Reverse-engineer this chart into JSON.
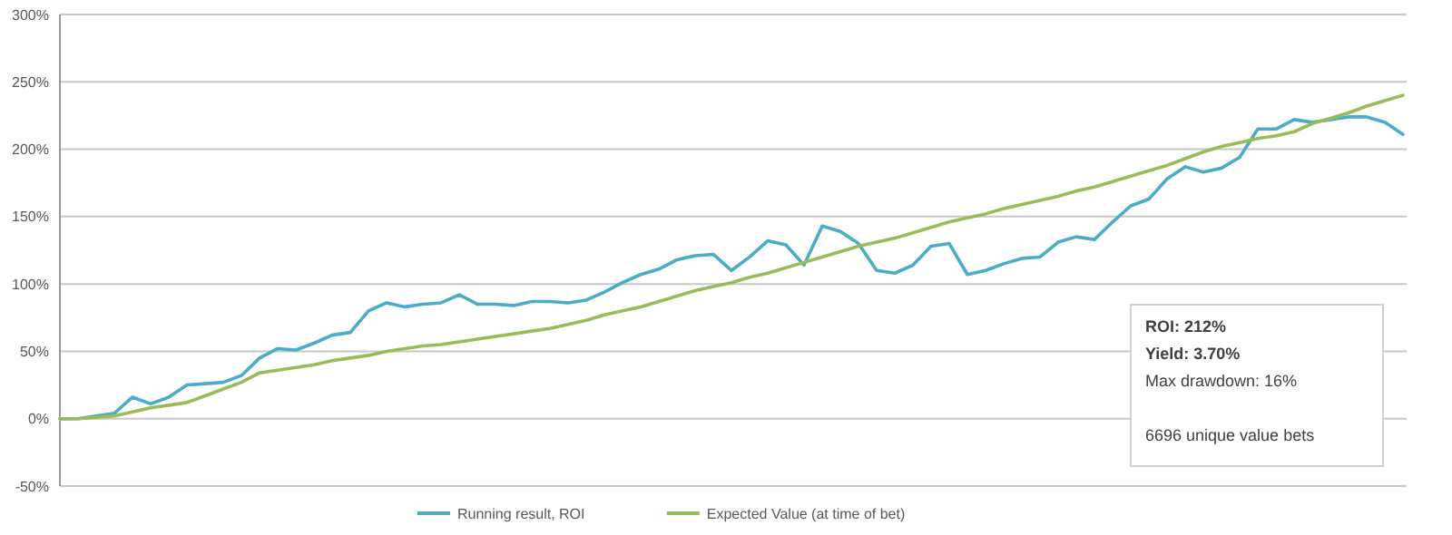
{
  "chart_data": {
    "type": "line",
    "categories": [
      null,
      null,
      null,
      null,
      null,
      null,
      null,
      null,
      null,
      null,
      null,
      null,
      null,
      null,
      null,
      null,
      null,
      null,
      null,
      null,
      null,
      null,
      null,
      null,
      null,
      null,
      null,
      null,
      null,
      null,
      null,
      null,
      null,
      null,
      null,
      null,
      null,
      null,
      null,
      null,
      null,
      null,
      null,
      null,
      null,
      null,
      null,
      null,
      null,
      null,
      null,
      null,
      null,
      null,
      null,
      null,
      null,
      null,
      null,
      null,
      null,
      null,
      null,
      null,
      null,
      null,
      null,
      null,
      null,
      null,
      null,
      null,
      null,
      null,
      null
    ],
    "series": [
      {
        "name": "Running result, ROI",
        "color": "#4bacc6",
        "values": [
          0,
          0,
          2,
          4,
          16,
          11,
          16,
          25,
          26,
          27,
          32,
          45,
          52,
          51,
          56,
          62,
          64,
          80,
          86,
          83,
          85,
          86,
          92,
          85,
          85,
          84,
          87,
          87,
          86,
          88,
          94,
          101,
          107,
          111,
          118,
          121,
          122,
          110,
          120,
          132,
          129,
          114,
          143,
          139,
          130,
          110,
          108,
          114,
          128,
          130,
          107,
          110,
          115,
          119,
          120,
          131,
          135,
          133,
          146,
          158,
          163,
          178,
          187,
          183,
          186,
          194,
          215,
          215,
          222,
          220,
          222,
          224,
          224,
          220,
          211
        ]
      },
      {
        "name": "Expected Value (at time of bet)",
        "color": "#9bbb59",
        "values": [
          0,
          0,
          1,
          2,
          5,
          8,
          10,
          12,
          17,
          22,
          27,
          34,
          36,
          38,
          40,
          43,
          45,
          47,
          50,
          52,
          54,
          55,
          57,
          59,
          61,
          63,
          65,
          67,
          70,
          73,
          77,
          80,
          83,
          87,
          91,
          95,
          98,
          101,
          105,
          108,
          112,
          116,
          120,
          124,
          128,
          131,
          134,
          138,
          142,
          146,
          149,
          152,
          156,
          159,
          162,
          165,
          169,
          172,
          176,
          180,
          184,
          188,
          193,
          198,
          202,
          205,
          208,
          210,
          213,
          219,
          223,
          227,
          232,
          236,
          240
        ]
      }
    ],
    "ylim": [
      -50,
      300
    ],
    "yticks": [
      {
        "value": -50,
        "label": "-50%"
      },
      {
        "value": 0,
        "label": "0%"
      },
      {
        "value": 50,
        "label": "50%"
      },
      {
        "value": 100,
        "label": "100%"
      },
      {
        "value": 150,
        "label": "150%"
      },
      {
        "value": 200,
        "label": "200%"
      },
      {
        "value": 250,
        "label": "250%"
      },
      {
        "value": 300,
        "label": "300%"
      }
    ],
    "grid": "y",
    "legend": "bottom",
    "marker": "none",
    "line_style": "solid",
    "annotations": [
      "ROI: 212%",
      "Yield: 3.70%",
      "Max drawdown:  16%",
      "6696 unique value bets"
    ]
  }
}
